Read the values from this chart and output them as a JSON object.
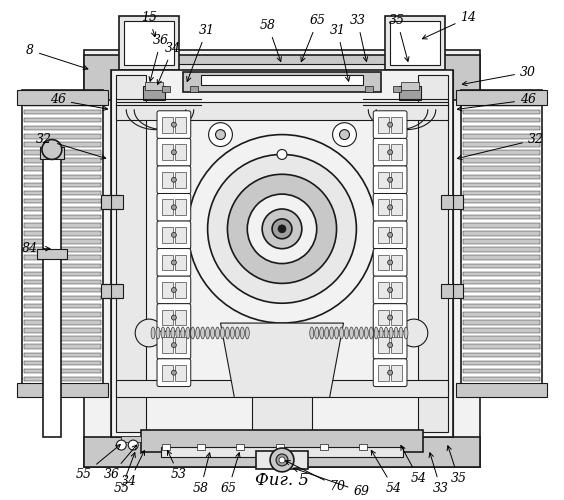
{
  "title": "Фиг. 5",
  "background_color": "#ffffff",
  "figsize": [
    5.64,
    5.0
  ],
  "dpi": 100,
  "line_color": "#1a1a1a",
  "gray_light": "#e8e8e8",
  "gray_mid": "#c8c8c8",
  "gray_dark": "#a0a0a0",
  "gray_very_light": "#f2f2f2",
  "white": "#ffffff"
}
